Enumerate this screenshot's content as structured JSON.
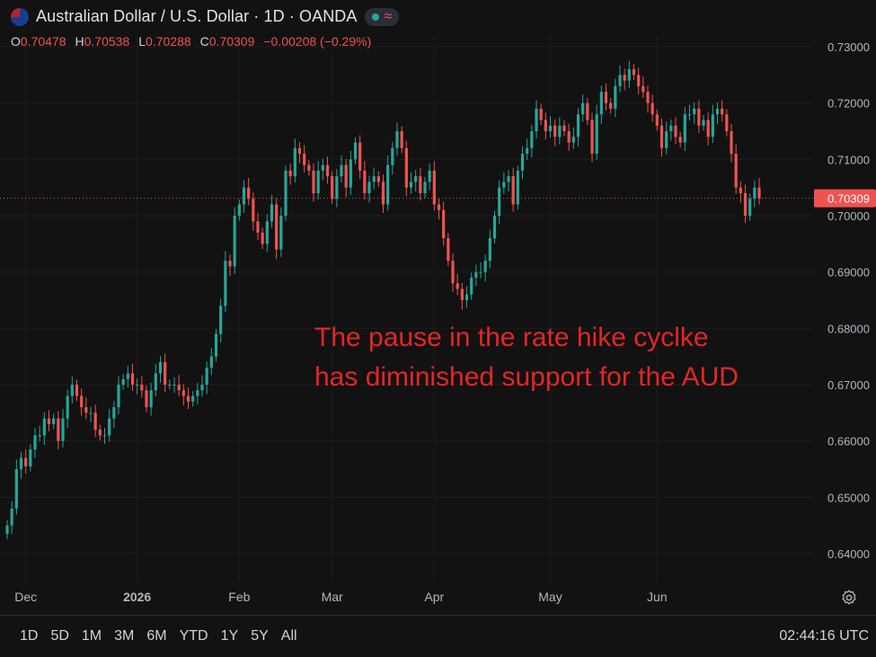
{
  "header": {
    "title": "Australian Dollar / U.S. Dollar · 1D · OANDA",
    "open_label": "O",
    "open": "0.70478",
    "high_label": "H",
    "high": "0.70538",
    "low_label": "L",
    "low": "0.70288",
    "close_label": "C",
    "close": "0.70309",
    "change": "−0.00208 (−0.29%)"
  },
  "annotation": "The pause in the rate hike cyclke\nhas diminished support for the AUD",
  "price_badge": "0.70309",
  "time_ranges": [
    "1D",
    "5D",
    "1M",
    "3M",
    "6M",
    "YTD",
    "1Y",
    "5Y",
    "All"
  ],
  "clock": "02:44:16 UTC",
  "icons": {
    "settings": "gear-icon",
    "indicator_toggle": "wave-icon",
    "flag": "au-us-flag-icon"
  },
  "colors": {
    "up": "#26a69a",
    "down": "#ef5350",
    "background": "#121212",
    "annotation": "#e32626"
  },
  "chart_data": {
    "type": "candlestick",
    "title": "Australian Dollar / U.S. Dollar · 1D · OANDA",
    "y_ticks": [
      "0.73000",
      "0.72000",
      "0.71000",
      "0.70000",
      "0.69000",
      "0.68000",
      "0.67000",
      "0.66000",
      "0.65000",
      "0.64000"
    ],
    "ylim": [
      0.6355,
      0.7325
    ],
    "x_ticks": [
      "Dec",
      "2026",
      "Feb",
      "Mar",
      "Apr",
      "May",
      "Jun"
    ],
    "last_price": 0.70309,
    "closes": [
      0.645,
      0.648,
      0.655,
      0.657,
      0.6555,
      0.6585,
      0.661,
      0.661,
      0.664,
      0.663,
      0.664,
      0.66,
      0.664,
      0.668,
      0.67,
      0.668,
      0.666,
      0.665,
      0.665,
      0.662,
      0.661,
      0.661,
      0.664,
      0.666,
      0.67,
      0.671,
      0.672,
      0.67,
      0.67,
      0.669,
      0.666,
      0.669,
      0.672,
      0.674,
      0.67,
      0.67,
      0.67,
      0.669,
      0.668,
      0.667,
      0.668,
      0.669,
      0.67,
      0.673,
      0.675,
      0.679,
      0.684,
      0.692,
      0.691,
      0.7,
      0.702,
      0.705,
      0.703,
      0.699,
      0.697,
      0.695,
      0.699,
      0.702,
      0.694,
      0.7,
      0.708,
      0.707,
      0.712,
      0.711,
      0.709,
      0.708,
      0.704,
      0.708,
      0.709,
      0.707,
      0.703,
      0.707,
      0.709,
      0.705,
      0.71,
      0.713,
      0.708,
      0.704,
      0.706,
      0.707,
      0.706,
      0.702,
      0.709,
      0.712,
      0.715,
      0.712,
      0.705,
      0.706,
      0.707,
      0.704,
      0.706,
      0.708,
      0.702,
      0.701,
      0.696,
      0.692,
      0.688,
      0.687,
      0.685,
      0.686,
      0.689,
      0.69,
      0.69,
      0.692,
      0.696,
      0.7,
      0.705,
      0.706,
      0.707,
      0.702,
      0.708,
      0.711,
      0.712,
      0.715,
      0.719,
      0.717,
      0.715,
      0.716,
      0.714,
      0.716,
      0.715,
      0.713,
      0.714,
      0.718,
      0.72,
      0.717,
      0.711,
      0.718,
      0.722,
      0.72,
      0.719,
      0.723,
      0.725,
      0.724,
      0.726,
      0.725,
      0.723,
      0.722,
      0.72,
      0.718,
      0.716,
      0.712,
      0.715,
      0.716,
      0.714,
      0.713,
      0.718,
      0.718,
      0.719,
      0.716,
      0.717,
      0.714,
      0.718,
      0.719,
      0.718,
      0.715,
      0.711,
      0.705,
      0.704,
      0.7,
      0.703,
      0.705,
      0.7031
    ]
  }
}
